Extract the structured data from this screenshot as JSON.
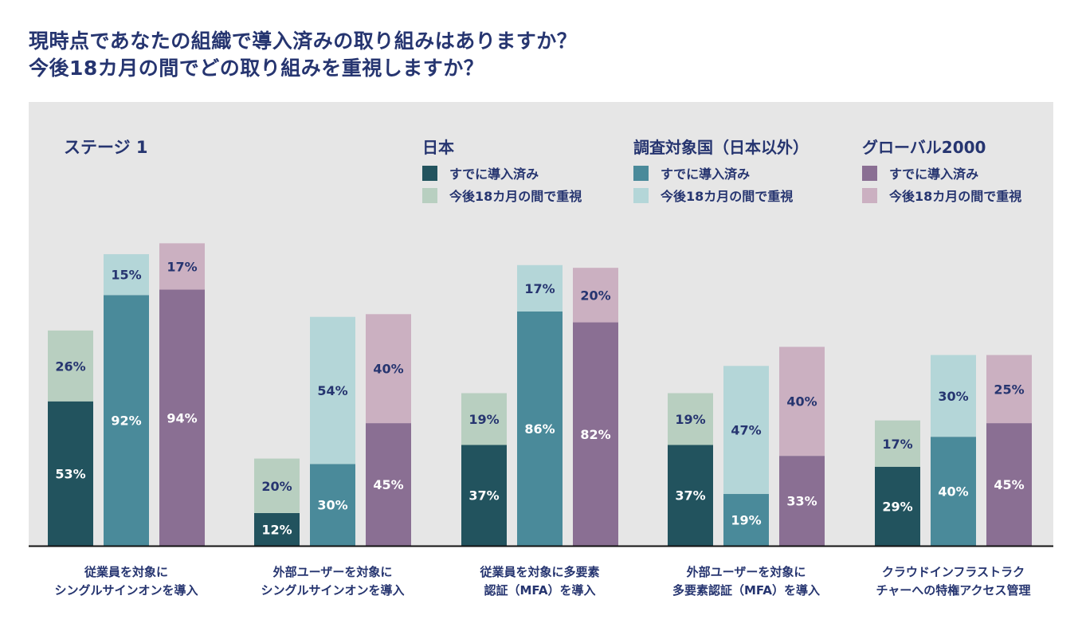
{
  "title_lines": [
    "現時点であなたの組織で導入済みの取り組みはありますか？",
    "今後18カ月の間でどの取り組みを重視しますか？"
  ],
  "chart_data": {
    "type": "bar",
    "stacked": true,
    "panel_label": "ステージ 1",
    "categories": [
      [
        "従業員を対象に",
        "シングルサインオンを導入"
      ],
      [
        "外部ユーザーを対象に",
        "シングルサインオンを導入"
      ],
      [
        "従業員を対象に多要素",
        "認証（MFA）を導入"
      ],
      [
        "外部ユーザーを対象に",
        "多要素認証（MFA）を導入"
      ],
      [
        "クラウドインフラストラク",
        "チャーへの特権アクセス管理"
      ]
    ],
    "groups": [
      {
        "name": "日本",
        "colors": {
          "implemented": "#22535e",
          "planned": "#b8cfc0"
        },
        "implemented": [
          53,
          12,
          37,
          37,
          29
        ],
        "planned": [
          26,
          20,
          19,
          19,
          17
        ]
      },
      {
        "name": "調査対象国（日本以外）",
        "colors": {
          "implemented": "#4a8a9a",
          "planned": "#b4d6d8"
        },
        "implemented": [
          92,
          30,
          86,
          19,
          40
        ],
        "planned": [
          15,
          54,
          17,
          47,
          30
        ]
      },
      {
        "name": "グローバル2000",
        "colors": {
          "implemented": "#8a6f93",
          "planned": "#cbb0c1"
        },
        "implemented": [
          94,
          45,
          82,
          33,
          45
        ],
        "planned": [
          17,
          40,
          20,
          40,
          25
        ]
      }
    ],
    "legend_items": [
      "すでに導入済み",
      "今後18カ月の間で重視"
    ],
    "legend_placement": "top-right",
    "value_suffix": "%",
    "ylim": [
      0,
      110
    ],
    "background": "#e6e6e6",
    "grid": false
  }
}
